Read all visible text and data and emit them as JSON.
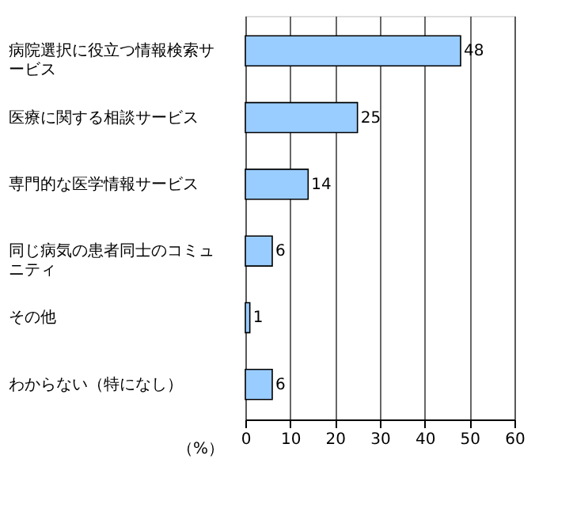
{
  "chart_data": {
    "type": "bar",
    "orientation": "horizontal",
    "categories": [
      "病院選択に役立つ情報検索サービス",
      "医療に関する相談サービス",
      "専門的な医学情報サービス",
      "同じ病気の患者同士のコミュニティ",
      "その他",
      "わからない（特になし）"
    ],
    "values": [
      48,
      25,
      14,
      6,
      1,
      6
    ],
    "color": "#99ccff",
    "xlabel": "（%）",
    "xlim": [
      0,
      60
    ],
    "xticks": [
      0,
      10,
      20,
      30,
      40,
      50,
      60
    ],
    "grid": "x",
    "data_labels": true
  }
}
